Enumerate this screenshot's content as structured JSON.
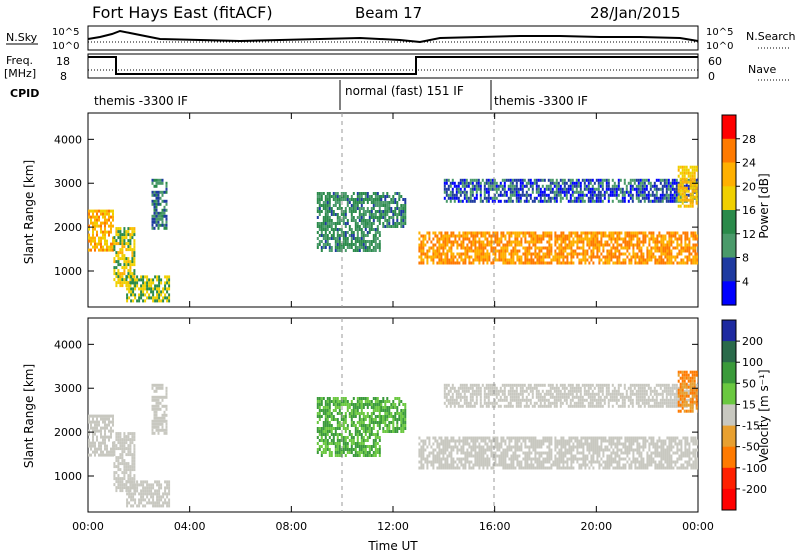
{
  "header": {
    "title": "Fort Hays East (fitACF)",
    "beam": "Beam 17",
    "date": "28/Jan/2015"
  },
  "status_panels": {
    "nsky_label": "N.Sky",
    "freq_label": "Freq.",
    "freq_unit": "[MHz]",
    "cpid_label": "CPID",
    "nsearch_label": "N.Search",
    "nave_label": "Nave",
    "nsky_ticks": [
      "10^5",
      "10^0"
    ],
    "nsearch_ticks": [
      "10^5",
      "10^0"
    ],
    "freq_ticks": [
      "18",
      "8"
    ],
    "nave_ticks": [
      "60",
      "0"
    ],
    "cpid_segments": [
      {
        "label": "themis -3300 IF",
        "start_h": 0,
        "end_h": 10
      },
      {
        "label": "normal (fast) 151 IF",
        "start_h": 10,
        "end_h": 16
      },
      {
        "label": "themis -3300 IF",
        "start_h": 16,
        "end_h": 24
      }
    ]
  },
  "chart_data": [
    {
      "type": "heatmap",
      "name": "power",
      "xlabel": "",
      "ylabel": "Slant Range [km]",
      "xlim": [
        0,
        24
      ],
      "ylim": [
        180,
        4600
      ],
      "yticks": [
        1000,
        2000,
        3000,
        4000
      ],
      "colorbar_label": "Power [dB]",
      "colorbar_ticks": [
        "28",
        "24",
        "20",
        "16",
        "12",
        "8",
        "4"
      ],
      "colorbar_colors": [
        "#ff0000",
        "#ff7a00",
        "#ffb000",
        "#f0d000",
        "#2a8a4a",
        "#4a9a6a",
        "#1e3aa0",
        "#0000ff"
      ],
      "blobs": [
        {
          "t": [
            0.0,
            1.0
          ],
          "r": [
            1500,
            2400
          ],
          "level": 20
        },
        {
          "t": [
            1.0,
            1.8
          ],
          "r": [
            700,
            2000
          ],
          "level": 16
        },
        {
          "t": [
            1.5,
            3.2
          ],
          "r": [
            300,
            900
          ],
          "level": 14
        },
        {
          "t": [
            2.5,
            3.1
          ],
          "r": [
            2000,
            3100
          ],
          "level": 8
        },
        {
          "t": [
            9.0,
            11.5
          ],
          "r": [
            1500,
            2800
          ],
          "level": 10
        },
        {
          "t": [
            11.5,
            12.5
          ],
          "r": [
            2000,
            2800
          ],
          "level": 9
        },
        {
          "t": [
            13.0,
            24.0
          ],
          "r": [
            1200,
            1900
          ],
          "level": 22
        },
        {
          "t": [
            14.0,
            24.0
          ],
          "r": [
            2600,
            3100
          ],
          "level": 6
        },
        {
          "t": [
            23.2,
            24.0
          ],
          "r": [
            2500,
            3400
          ],
          "level": 18
        }
      ]
    },
    {
      "type": "heatmap",
      "name": "velocity",
      "xlabel": "Time UT",
      "ylabel": "Slant Range [km]",
      "xlim": [
        0,
        24
      ],
      "ylim": [
        180,
        4600
      ],
      "xticks": [
        "00:00",
        "04:00",
        "08:00",
        "12:00",
        "16:00",
        "20:00",
        "00:00"
      ],
      "yticks": [
        1000,
        2000,
        3000,
        4000
      ],
      "colorbar_label": "Velocity [m s⁻¹]",
      "colorbar_ticks": [
        "200",
        "100",
        "50",
        "15",
        "-15",
        "-50",
        "-100",
        "-200"
      ],
      "colorbar_colors": [
        "#1e2aa0",
        "#2a6a4a",
        "#3a9a3a",
        "#6ac840",
        "#c8c8c0",
        "#e8a030",
        "#ff7a00",
        "#ff2000",
        "#ff0000"
      ],
      "blobs": [
        {
          "t": [
            0.0,
            1.0
          ],
          "r": [
            1500,
            2400
          ],
          "level": 0
        },
        {
          "t": [
            1.0,
            1.8
          ],
          "r": [
            700,
            2000
          ],
          "level": 0
        },
        {
          "t": [
            1.5,
            3.2
          ],
          "r": [
            300,
            900
          ],
          "level": 0
        },
        {
          "t": [
            2.5,
            3.1
          ],
          "r": [
            2000,
            3100
          ],
          "level": 0
        },
        {
          "t": [
            9.0,
            11.5
          ],
          "r": [
            1500,
            2800
          ],
          "level": 30
        },
        {
          "t": [
            11.5,
            12.5
          ],
          "r": [
            2000,
            2800
          ],
          "level": 30
        },
        {
          "t": [
            13.0,
            24.0
          ],
          "r": [
            1200,
            1900
          ],
          "level": 0
        },
        {
          "t": [
            14.0,
            24.0
          ],
          "r": [
            2600,
            3100
          ],
          "level": 0
        },
        {
          "t": [
            23.2,
            24.0
          ],
          "r": [
            2500,
            3400
          ],
          "level": -50
        }
      ]
    }
  ]
}
